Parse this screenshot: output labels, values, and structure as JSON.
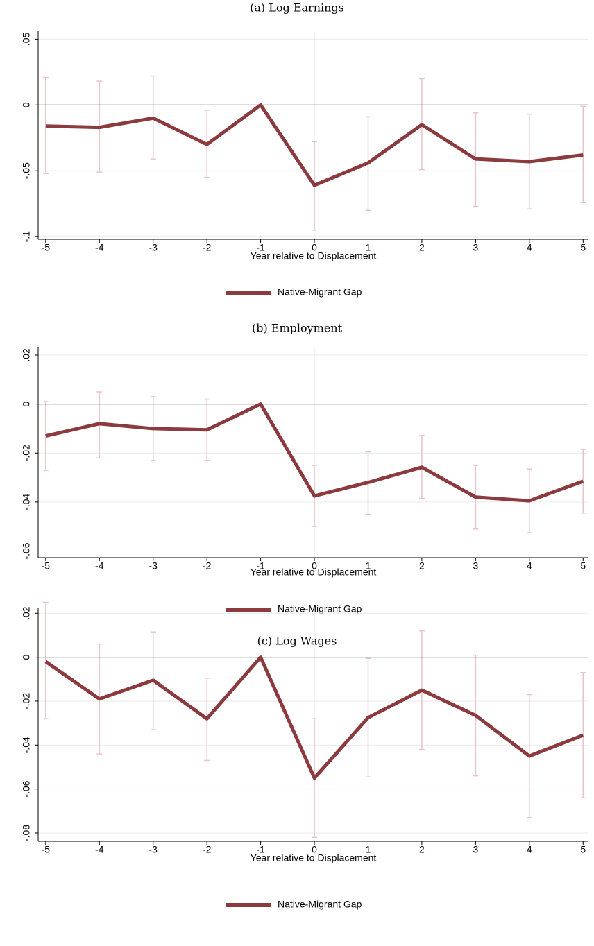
{
  "chart_data": [
    {
      "type": "line",
      "title": "(a) Log Earnings",
      "x_label": "Year relative to Displacement",
      "x": [
        -5,
        -4,
        -3,
        -2,
        -1,
        0,
        1,
        2,
        3,
        4,
        5
      ],
      "series": [
        {
          "name": "Native-Migrant Gap",
          "color": "#8b3a3e",
          "ci_color": "#e8c4c9",
          "values": [
            -0.016,
            -0.017,
            -0.01,
            -0.03,
            0,
            -0.061,
            -0.044,
            -0.015,
            -0.041,
            -0.043,
            -0.038
          ],
          "ci_lower": [
            -0.052,
            -0.051,
            -0.041,
            -0.055,
            null,
            -0.095,
            -0.08,
            -0.049,
            -0.077,
            -0.079,
            -0.074
          ],
          "ci_upper": [
            0.021,
            0.018,
            0.022,
            -0.004,
            null,
            -0.028,
            -0.009,
            0.02,
            -0.006,
            -0.007,
            -0.001
          ]
        }
      ],
      "xlim": [
        -5.14,
        5.1
      ],
      "ylim": [
        -0.102,
        0.056
      ],
      "xticks": [
        -5,
        -4,
        -3,
        -2,
        -1,
        0,
        1,
        2,
        3,
        4,
        5
      ],
      "yticks": [
        {
          "value": -0.1,
          "label": "-.1"
        },
        {
          "value": -0.05,
          "label": "-.05"
        },
        0,
        {
          "value": 0.05,
          "label": ".05"
        }
      ],
      "grid": true,
      "ref_y": 0,
      "ref_x": 0,
      "legend": "bottom"
    },
    {
      "type": "line",
      "title": "(b) Employment",
      "x_label": "Year relative to Displacement",
      "x": [
        -5,
        -4,
        -3,
        -2,
        -1,
        0,
        1,
        2,
        3,
        4,
        5
      ],
      "series": [
        {
          "name": "Native-Migrant Gap",
          "color": "#8b3a3e",
          "ci_color": "#e8c4c9",
          "values": [
            -0.013,
            -0.008,
            -0.01,
            -0.0105,
            0,
            -0.0375,
            -0.032,
            -0.0258,
            -0.038,
            -0.0395,
            -0.0315
          ],
          "ci_lower": [
            -0.027,
            -0.022,
            -0.023,
            -0.023,
            null,
            -0.05,
            -0.045,
            -0.0385,
            -0.051,
            -0.0525,
            -0.0445
          ],
          "ci_upper": [
            0.001,
            0.005,
            0.003,
            0.002,
            null,
            -0.025,
            -0.0195,
            -0.0128,
            -0.025,
            -0.0265,
            -0.0185
          ]
        }
      ],
      "xlim": [
        -5.14,
        5.1
      ],
      "ylim": [
        -0.0627,
        0.0234
      ],
      "xticks": [
        -5,
        -4,
        -3,
        -2,
        -1,
        0,
        1,
        2,
        3,
        4,
        5
      ],
      "yticks": [
        {
          "value": -0.06,
          "label": "-.06"
        },
        {
          "value": -0.04,
          "label": "-.04"
        },
        {
          "value": -0.02,
          "label": "-.02"
        },
        0,
        {
          "value": 0.02,
          "label": ".02"
        }
      ],
      "grid": true,
      "ref_y": 0,
      "ref_x": 0,
      "legend": "bottom"
    },
    {
      "type": "line",
      "title": "(c) Log Wages",
      "x_label": "Year relative to Displacement",
      "x": [
        -5,
        -4,
        -3,
        -2,
        -1,
        0,
        1,
        2,
        3,
        4,
        5
      ],
      "series": [
        {
          "name": "Native-Migrant Gap",
          "color": "#8b3a3e",
          "ci_color": "#e8c4c9",
          "values": [
            -0.002,
            -0.019,
            -0.0105,
            -0.028,
            0,
            -0.055,
            -0.0275,
            -0.015,
            -0.0265,
            -0.045,
            -0.0355
          ],
          "ci_lower": [
            -0.028,
            -0.044,
            -0.033,
            -0.047,
            null,
            -0.082,
            -0.0545,
            -0.042,
            -0.054,
            -0.073,
            -0.064
          ],
          "ci_upper": [
            0.025,
            0.006,
            0.0115,
            -0.0095,
            null,
            -0.028,
            -0.0005,
            0.012,
            0.001,
            -0.017,
            -0.007
          ]
        }
      ],
      "xlim": [
        -5.14,
        5.1
      ],
      "ylim": [
        -0.0838,
        0.0223
      ],
      "xticks": [
        -5,
        -4,
        -3,
        -2,
        -1,
        0,
        1,
        2,
        3,
        4,
        5
      ],
      "yticks": [
        {
          "value": -0.08,
          "label": "-.08"
        },
        {
          "value": -0.06,
          "label": "-.06"
        },
        {
          "value": -0.04,
          "label": "-.04"
        },
        {
          "value": -0.02,
          "label": "-.02"
        },
        0,
        {
          "value": 0.02,
          "label": ".02"
        }
      ],
      "grid": true,
      "ref_y": 0,
      "ref_x": 0,
      "legend": "bottom"
    }
  ]
}
